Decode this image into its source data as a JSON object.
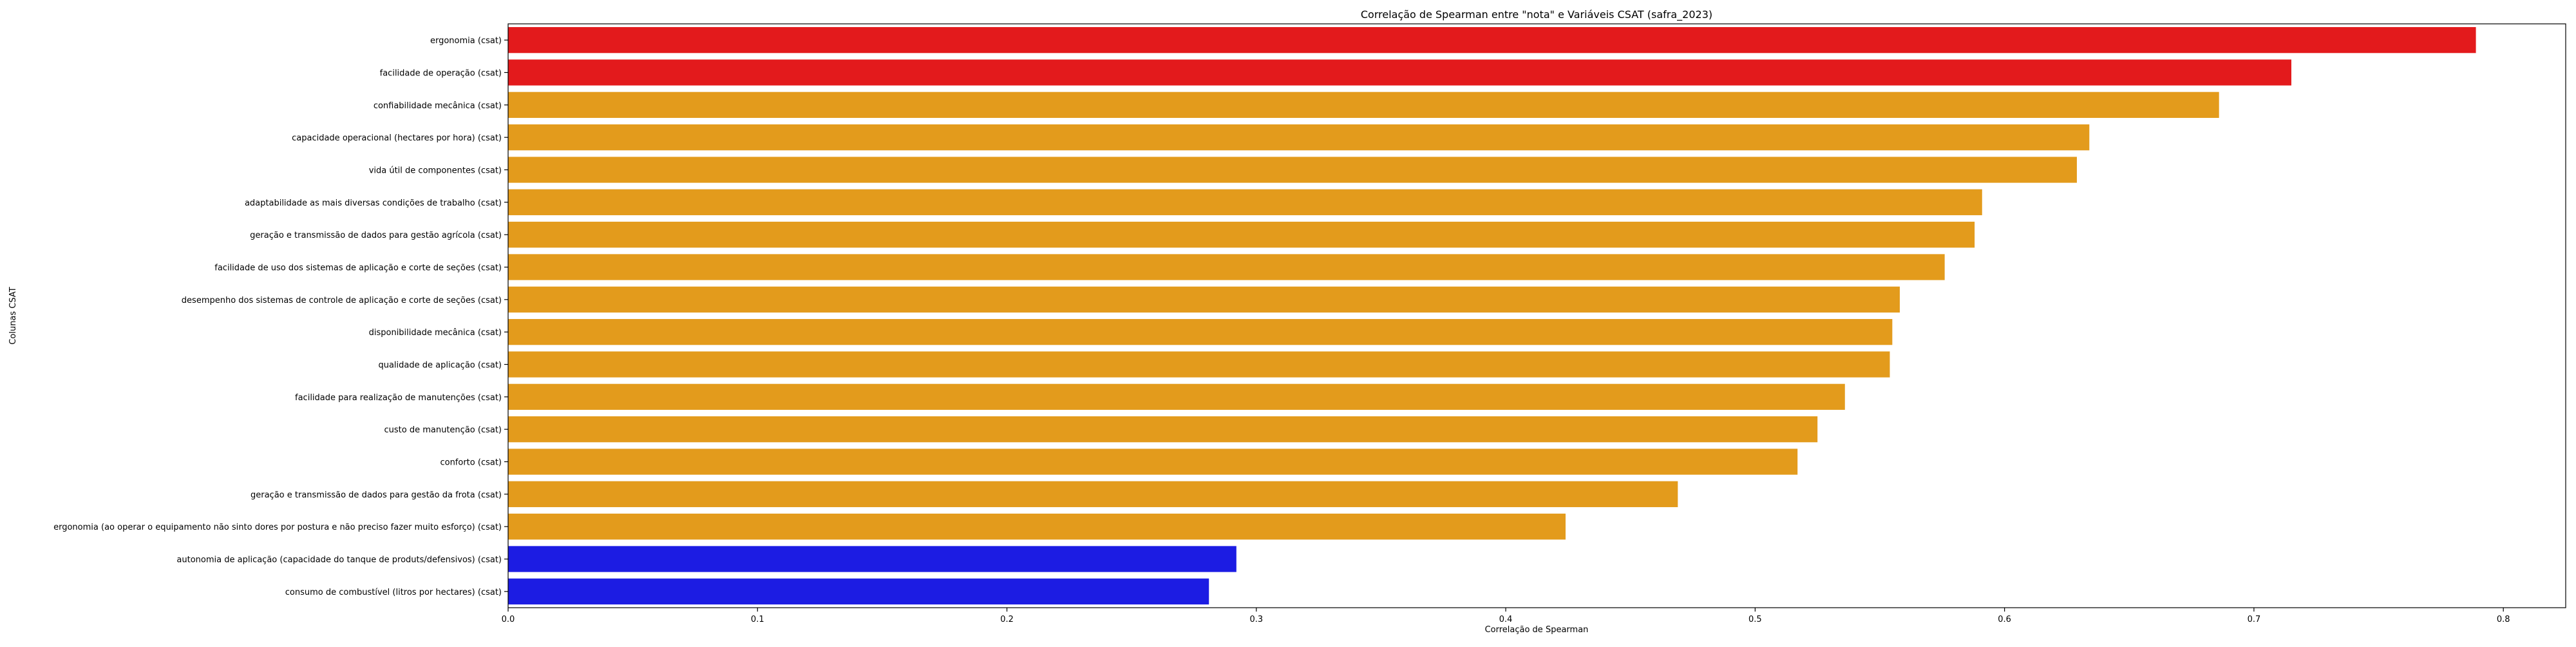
{
  "chart_data": {
    "type": "bar",
    "orientation": "horizontal",
    "title": "Correlação de Spearman entre \"nota\" e Variáveis CSAT (safra_2023)",
    "xlabel": "Correlação de Spearman",
    "ylabel": "Colunas CSAT",
    "xlim": [
      0.0,
      0.825
    ],
    "xticks": [
      "0.0",
      "0.1",
      "0.2",
      "0.3",
      "0.4",
      "0.5",
      "0.6",
      "0.7",
      "0.8"
    ],
    "grid": false,
    "legend": "none",
    "colors": {
      "top": "#e31a1c",
      "middle": "#e39b1c",
      "bottom": "#1c1ce3"
    },
    "bars": [
      {
        "label": "ergonomia (csat)",
        "value": 0.789,
        "color": "top"
      },
      {
        "label": "facilidade de operação (csat)",
        "value": 0.715,
        "color": "top"
      },
      {
        "label": "confiabilidade mecânica (csat)",
        "value": 0.686,
        "color": "middle"
      },
      {
        "label": "capacidade operacional (hectares por hora) (csat)",
        "value": 0.634,
        "color": "middle"
      },
      {
        "label": "vida útil de componentes (csat)",
        "value": 0.629,
        "color": "middle"
      },
      {
        "label": "adaptabilidade as mais diversas condições de trabalho (csat)",
        "value": 0.591,
        "color": "middle"
      },
      {
        "label": "geração e transmissão de dados para gestão agrícola (csat)",
        "value": 0.588,
        "color": "middle"
      },
      {
        "label": "facilidade de uso dos sistemas de aplicação e corte de seções (csat)",
        "value": 0.576,
        "color": "middle"
      },
      {
        "label": "desempenho dos sistemas de controle de aplicação e corte de seções (csat)",
        "value": 0.558,
        "color": "middle"
      },
      {
        "label": "disponibilidade mecânica (csat)",
        "value": 0.555,
        "color": "middle"
      },
      {
        "label": "qualidade de aplicação (csat)",
        "value": 0.554,
        "color": "middle"
      },
      {
        "label": "facilidade para realização de manutenções (csat)",
        "value": 0.536,
        "color": "middle"
      },
      {
        "label": "custo de manutenção (csat)",
        "value": 0.525,
        "color": "middle"
      },
      {
        "label": "conforto (csat)",
        "value": 0.517,
        "color": "middle"
      },
      {
        "label": "geração e transmissão de dados para gestão da frota (csat)",
        "value": 0.469,
        "color": "middle"
      },
      {
        "label": "ergonomia (ao operar o equipamento não sinto dores por postura e não preciso fazer muito esforço) (csat)",
        "value": 0.424,
        "color": "middle"
      },
      {
        "label": "autonomia de aplicação (capacidade do tanque de produts/defensivos) (csat)",
        "value": 0.292,
        "color": "bottom"
      },
      {
        "label": "consumo de combustível (litros por hectares) (csat)",
        "value": 0.281,
        "color": "bottom"
      }
    ]
  }
}
